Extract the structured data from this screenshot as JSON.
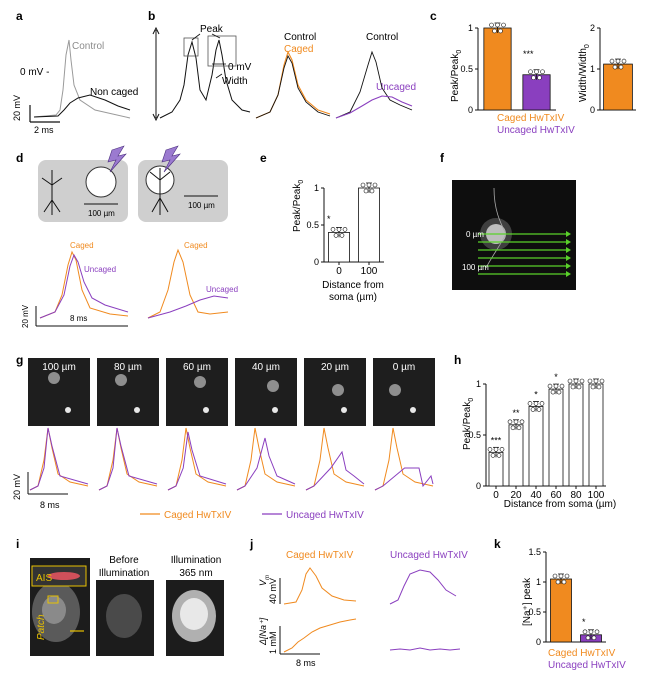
{
  "colors": {
    "caged": "#f08a1f",
    "uncaged": "#8a3fbf",
    "control": "#9a9a9a",
    "dark": "#111111",
    "gray_box": "#cfcfcf"
  },
  "panel_a": {
    "label": "a",
    "zero_mv": "0 mV -",
    "control": "Control",
    "non_caged": "Non caged",
    "scale_mv": "20 mV",
    "scale_ms": "2 ms"
  },
  "panel_b": {
    "label": "b",
    "peak": "Peak",
    "zero_mv": "0 mV",
    "width": "Width",
    "control1": "Control",
    "caged": "Caged",
    "control2": "Control",
    "uncaged": "Uncaged"
  },
  "panel_c": {
    "label": "c",
    "ylabel1": "Peak/Peak",
    "ylabel1_sub": "0",
    "ylabel2": "Width/Width",
    "ylabel2_sub": "0",
    "star": "***",
    "legend_caged": "Caged HwTxIV",
    "legend_uncaged": "Uncaged HwTxIV"
  },
  "panel_d": {
    "label": "d",
    "scale1": "100 µm",
    "scale2": "100 µm",
    "caged1": "Caged",
    "uncaged1": "Uncaged",
    "caged2": "Caged",
    "uncaged2": "Uncaged",
    "scale_mv": "20 mV",
    "scale_ms": "8 ms"
  },
  "panel_e": {
    "label": "e",
    "ylabel": "Peak/Peak",
    "ylabel_sub": "0",
    "xlabel1": "Distance from",
    "xlabel2": "soma (µm)",
    "star": "*"
  },
  "panel_f": {
    "label": "f",
    "dist0": "0 µm",
    "dist100": "100 µm"
  },
  "panel_g": {
    "label": "g",
    "tiles": [
      "100 µm",
      "80 µm",
      "60 µm",
      "40 µm",
      "20 µm",
      "0 µm"
    ],
    "scale_mv": "20 mV",
    "scale_ms": "8 ms",
    "legend_caged": "Caged HwTxIV",
    "legend_uncaged": "Uncaged HwTxIV"
  },
  "panel_h": {
    "label": "h",
    "ylabel": "Peak/Peak",
    "ylabel_sub": "0",
    "xlabel": "Distance from soma (µm)",
    "stars": [
      "***",
      "**",
      "*",
      "*",
      "",
      ""
    ]
  },
  "panel_i": {
    "label": "i",
    "ais": "AIS",
    "patch": "Patch",
    "before1": "Before",
    "before2": "Illumination",
    "illum1": "Illumination",
    "illum2": "365 nm"
  },
  "panel_j": {
    "label": "j",
    "caged": "Caged HwTxIV",
    "uncaged": "Uncaged HwTxIV",
    "vm": "V",
    "vm_sub": "m",
    "mv": "40 mV",
    "na": "Δ[Na⁺]",
    "mm": "1 mM",
    "ms": "8 ms"
  },
  "panel_k": {
    "label": "k",
    "ylabel": "[Na⁺] peak",
    "star": "*",
    "legend_caged": "Caged HwTxIV",
    "legend_uncaged": "Uncaged HwTxIV"
  },
  "chart_data": [
    {
      "id": "c1",
      "type": "bar",
      "categories": [
        "Caged HwTxIV",
        "Uncaged HwTxIV"
      ],
      "values": [
        1.0,
        0.43
      ],
      "ylim": [
        0,
        1
      ],
      "yticks": [
        0,
        0.5,
        1
      ],
      "ylabel": "Peak/Peak0"
    },
    {
      "id": "c2",
      "type": "bar",
      "categories": [
        "Caged HwTxIV"
      ],
      "values": [
        1.12
      ],
      "ylim": [
        0,
        2
      ],
      "yticks": [
        0,
        1,
        2
      ],
      "ylabel": "Width/Width0"
    },
    {
      "id": "e",
      "type": "bar",
      "categories": [
        "0",
        "100"
      ],
      "values": [
        0.4,
        1.0
      ],
      "ylim": [
        0,
        1
      ],
      "yticks": [
        0,
        0.5,
        1
      ],
      "xlabel": "Distance from soma (µm)"
    },
    {
      "id": "h",
      "type": "bar",
      "categories": [
        "0",
        "20",
        "40",
        "60",
        "80",
        "100"
      ],
      "values": [
        0.33,
        0.6,
        0.78,
        0.95,
        1.0,
        1.0
      ],
      "ylim": [
        0,
        1
      ],
      "yticks": [
        0,
        0.5,
        1
      ],
      "xlabel": "Distance from soma (µm)"
    },
    {
      "id": "k",
      "type": "bar",
      "categories": [
        "Caged HwTxIV",
        "Uncaged HwTxIV"
      ],
      "values": [
        1.05,
        0.12
      ],
      "ylim": [
        0,
        1.5
      ],
      "yticks": [
        0,
        0.5,
        1,
        1.5
      ],
      "ylabel": "[Na+] peak"
    }
  ]
}
